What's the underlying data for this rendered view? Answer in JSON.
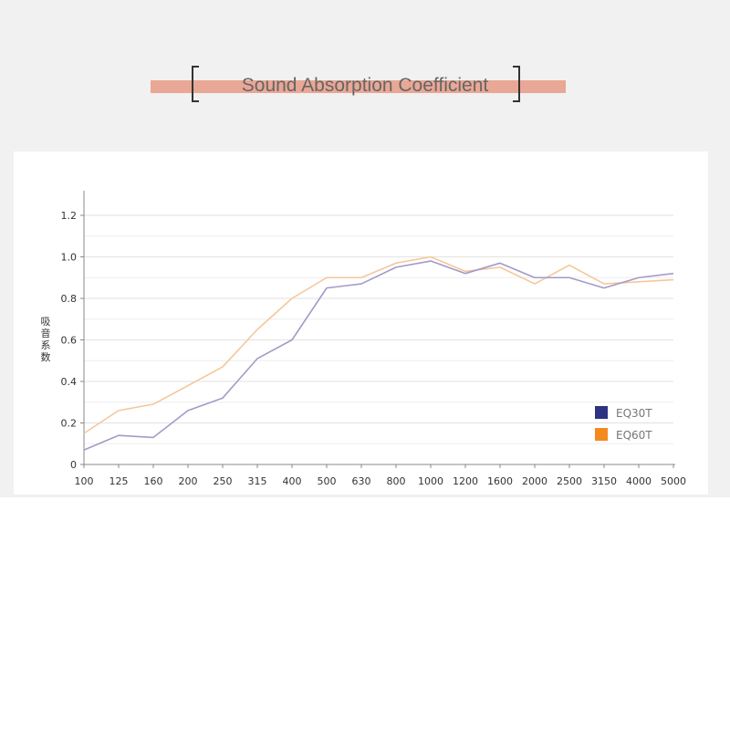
{
  "header": {
    "title": "Sound Absorption Coefficient",
    "accent_color": "#e9a795"
  },
  "chart_data": {
    "type": "line",
    "title": "",
    "xlabel": "",
    "ylabel": "吸音系数",
    "categories": [
      "100",
      "125",
      "160",
      "200",
      "250",
      "315",
      "400",
      "500",
      "630",
      "800",
      "1000",
      "1200",
      "1600",
      "2000",
      "2500",
      "3150",
      "4000",
      "5000"
    ],
    "ylim": [
      0,
      1.3
    ],
    "yticks": [
      "0",
      "0.2",
      "0.4",
      "0.6",
      "0.8",
      "1.0",
      "1.2"
    ],
    "grid": true,
    "legend_position": "bottom-right",
    "series": [
      {
        "name": "EQ30T",
        "legend_color": "#2e3383",
        "line_color": "#a49ac8",
        "values": [
          0.07,
          0.14,
          0.13,
          0.26,
          0.32,
          0.51,
          0.6,
          0.85,
          0.87,
          0.95,
          0.98,
          0.92,
          0.97,
          0.9,
          0.9,
          0.85,
          0.9,
          0.92
        ]
      },
      {
        "name": "EQ60T",
        "legend_color": "#f28a1e",
        "line_color": "#f5c79a",
        "values": [
          0.15,
          0.26,
          0.29,
          0.38,
          0.47,
          0.65,
          0.8,
          0.9,
          0.9,
          0.97,
          1.0,
          0.93,
          0.95,
          0.87,
          0.96,
          0.87,
          0.88,
          0.89
        ]
      }
    ]
  }
}
